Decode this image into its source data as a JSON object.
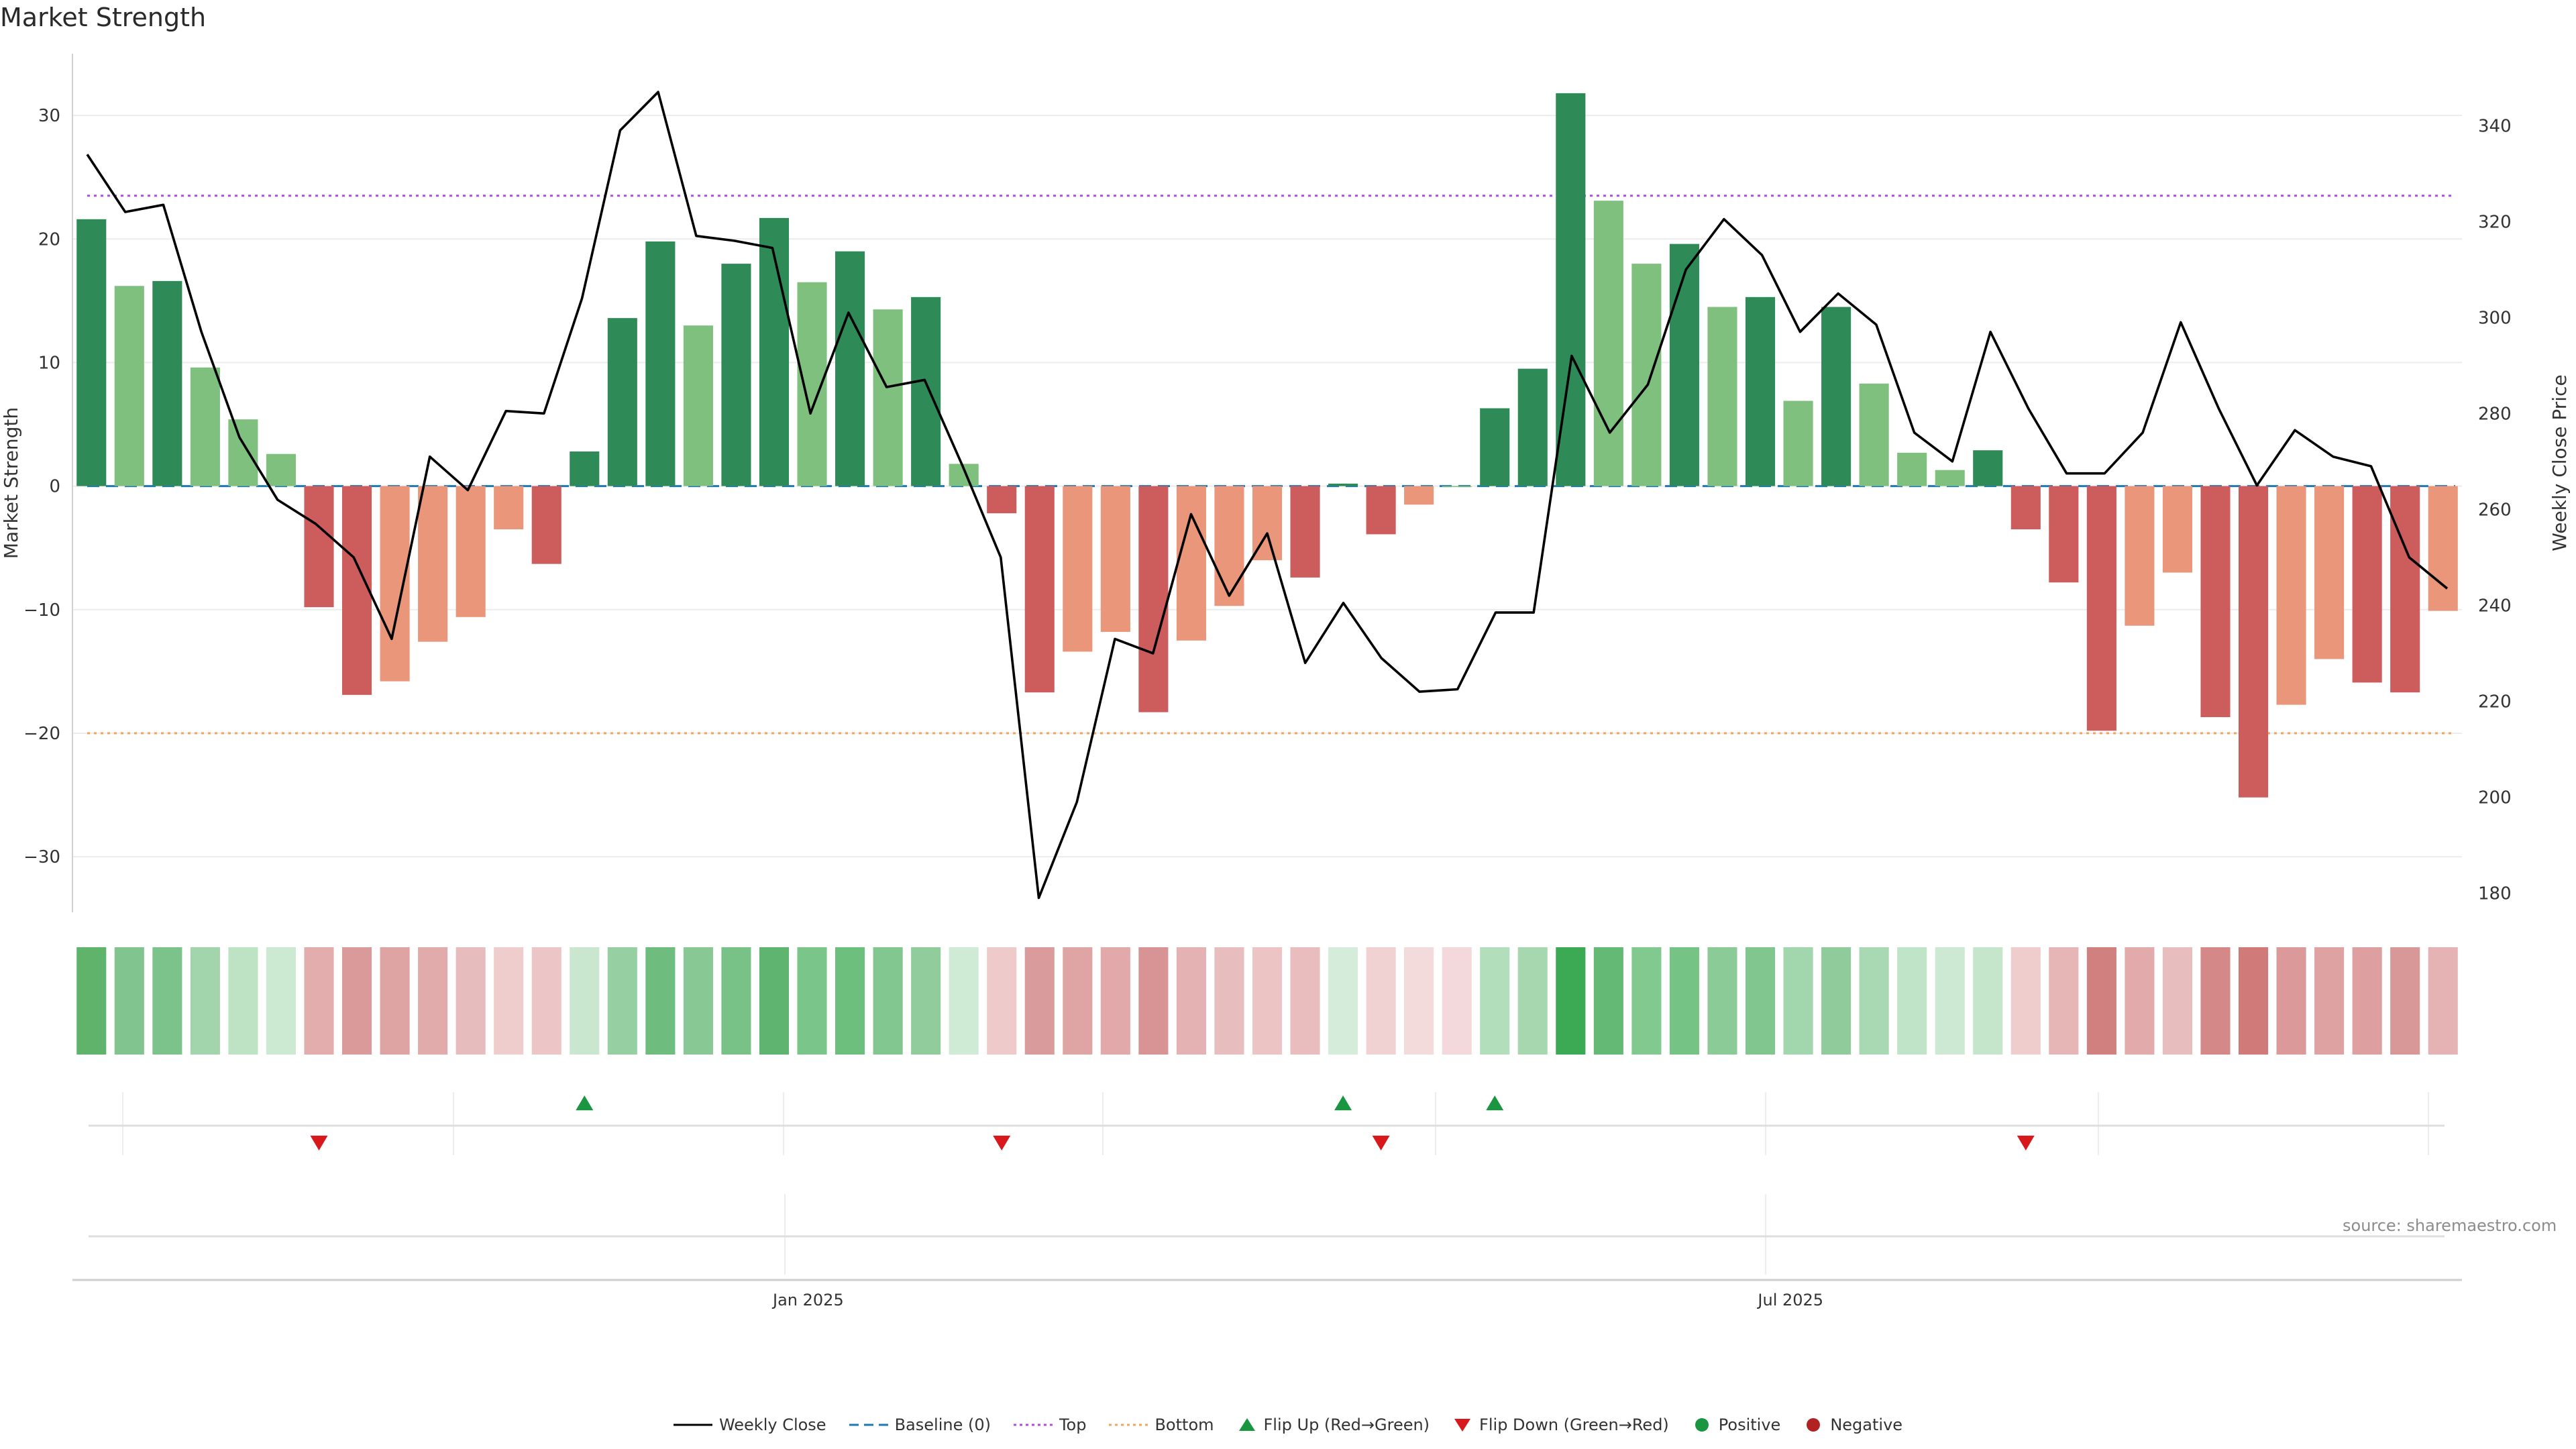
{
  "title": "Market Strength",
  "source": "source: sharemaestro.com",
  "colors": {
    "pos_strong": "#2e8b57",
    "pos_weak": "#7fc07f",
    "neg_strong": "#cd5c5c",
    "neg_weak": "#e9967a",
    "price_line": "#000000",
    "baseline": "#1f77b4",
    "top": "#b24be0",
    "bottom": "#f0a55a",
    "flip_up": "#1a9641",
    "flip_down": "#d7191c",
    "positive": "#1a9641",
    "negative": "#d7191c"
  },
  "legend": [
    {
      "label": "Weekly Close",
      "kind": "line",
      "color": "#000000"
    },
    {
      "label": "Baseline (0)",
      "kind": "dashed",
      "color": "#1f77b4"
    },
    {
      "label": "Top",
      "kind": "dotted",
      "color": "#b24be0"
    },
    {
      "label": "Bottom",
      "kind": "dotted",
      "color": "#f0a55a"
    },
    {
      "label": "Flip Up (Red→Green)",
      "kind": "tri-up",
      "color": "#1a9641"
    },
    {
      "label": "Flip Down (Green→Red)",
      "kind": "tri-down",
      "color": "#d7191c"
    },
    {
      "label": "Positive",
      "kind": "dot",
      "color": "#1a9641"
    },
    {
      "label": "Negative",
      "kind": "dot",
      "color": "#b22222"
    }
  ],
  "chart_data": {
    "type": "bar",
    "title": "Market Strength",
    "ylabel": "Market Strength",
    "y2label": "Weekly Close Price",
    "ylim": [
      -34.5,
      35
    ],
    "y2lim": [
      176,
      355
    ],
    "yticks": [
      30,
      20,
      10,
      0,
      -10,
      -20,
      -30
    ],
    "yticklabels": [
      "30",
      "20",
      "10",
      "0",
      "−10",
      "−20",
      "−30"
    ],
    "y2ticks": [
      340,
      320,
      300,
      280,
      260,
      240,
      220,
      200,
      180
    ],
    "y2ticklabels": [
      "340",
      "320",
      "300",
      "280",
      "260",
      "240",
      "220",
      "200",
      "180"
    ],
    "xticks": [
      {
        "label": "Jan 2025",
        "week": 18.9
      },
      {
        "label": "Jul 2025",
        "week": 44.8
      }
    ],
    "n_weeks": 63,
    "top_line": 23.5,
    "bottom_line": -20,
    "baseline": 0,
    "strength": [
      21.6,
      16.2,
      16.6,
      9.6,
      5.4,
      2.6,
      -9.8,
      -16.9,
      -15.8,
      -12.6,
      -10.6,
      -3.5,
      -6.3,
      2.8,
      13.6,
      19.8,
      13.0,
      18.0,
      21.7,
      16.5,
      19.0,
      14.3,
      15.3,
      1.8,
      -2.2,
      -16.7,
      -13.4,
      -11.8,
      -18.3,
      -12.5,
      -9.7,
      -6.0,
      -7.4,
      0.2,
      -3.9,
      -1.5,
      0.0,
      6.3,
      9.5,
      31.8,
      23.1,
      18.0,
      19.6,
      14.5,
      15.3,
      6.9,
      14.5,
      8.3,
      2.7,
      1.3,
      2.9,
      -3.5,
      -7.8,
      -19.8,
      -11.3,
      -7.0,
      -18.7,
      -25.2,
      -17.7,
      -14.0,
      -15.9,
      -16.7,
      -10.1
    ],
    "strength_tier": [
      "s",
      "w",
      "s",
      "w",
      "w",
      "w",
      "s",
      "s",
      "w",
      "w",
      "w",
      "w",
      "s",
      "s",
      "s",
      "s",
      "w",
      "s",
      "s",
      "w",
      "s",
      "w",
      "s",
      "w",
      "s",
      "s",
      "w",
      "w",
      "s",
      "w",
      "w",
      "w",
      "s",
      "s",
      "s",
      "w",
      "w",
      "s",
      "s",
      "s",
      "w",
      "w",
      "s",
      "w",
      "s",
      "w",
      "s",
      "w",
      "w",
      "w",
      "s",
      "s",
      "s",
      "s",
      "w",
      "w",
      "s",
      "s",
      "w",
      "w",
      "s",
      "s",
      "w"
    ],
    "weekly_close": [
      334,
      322,
      323.5,
      297,
      275,
      262,
      257,
      250,
      233,
      271,
      264,
      280.5,
      280,
      304,
      339,
      347,
      317,
      316,
      314.5,
      280,
      301,
      285.5,
      287,
      269,
      250,
      179,
      199,
      233,
      230,
      259,
      242,
      255,
      228,
      240.5,
      229,
      222,
      222.5,
      238.5,
      238.5,
      292,
      276,
      286,
      310,
      320.5,
      313,
      297,
      305,
      298.5,
      276,
      270,
      297,
      281,
      267.5,
      267.5,
      276,
      299,
      281,
      265,
      276.5,
      271,
      269,
      250,
      243.5
    ],
    "heat_strip": [
      "#5fb36b",
      "#82c48f",
      "#7cc38b",
      "#a3d5ac",
      "#bde3c4",
      "#cce9d2",
      "#e4adad",
      "#db9a9a",
      "#dea3a3",
      "#e2abab",
      "#e7bcbc",
      "#f0cdcd",
      "#ecc6c6",
      "#c9e7cf",
      "#96cfa2",
      "#6fbd7e",
      "#87c894",
      "#78c187",
      "#5fb56f",
      "#7ac589",
      "#6dbf7d",
      "#82c690",
      "#90cc9c",
      "#d0ebd5",
      "#efcaca",
      "#d99b9b",
      "#dfa5a5",
      "#e1a9a9",
      "#d89494",
      "#e4b2b2",
      "#e8bdbd",
      "#ecc4c4",
      "#e9bdbd",
      "#d6ecda",
      "#f1d2d2",
      "#f4dbdb",
      "#f3d8dc",
      "#b3debb",
      "#a6d7ae",
      "#3ca955",
      "#64b975",
      "#82c990",
      "#75c385",
      "#8bcb98",
      "#80c68e",
      "#a2d6ad",
      "#8fcb9b",
      "#a8d9b2",
      "#c0e4c7",
      "#cde9d3",
      "#c5e6cb",
      "#f0cdcd",
      "#e6b5b5",
      "#d18080",
      "#e2aaaa",
      "#e8bdbd",
      "#d48888",
      "#d07a7a",
      "#db9999",
      "#dea2a2",
      "#dd9f9f",
      "#d99898",
      "#e5b3b3"
    ],
    "flip_up_weeks": [
      13,
      33,
      37
    ],
    "flip_down_weeks": [
      6,
      24,
      34,
      51
    ]
  }
}
